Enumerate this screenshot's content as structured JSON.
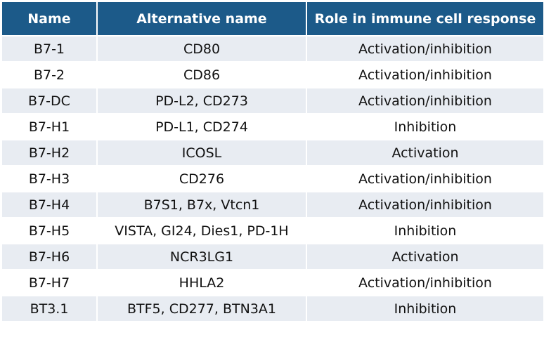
{
  "table": {
    "header": [
      "Name",
      "Alternative name",
      "Role in immune cell response"
    ],
    "rows": [
      [
        "B7-1",
        "CD80",
        "Activation/inhibition"
      ],
      [
        "B7-2",
        "CD86",
        "Activation/inhibition"
      ],
      [
        "B7-DC",
        "PD-L2, CD273",
        "Activation/inhibition"
      ],
      [
        "B7-H1",
        "PD-L1, CD274",
        "Inhibition"
      ],
      [
        "B7-H2",
        "ICOSL",
        "Activation"
      ],
      [
        "B7-H3",
        "CD276",
        "Activation/inhibition"
      ],
      [
        "B7-H4",
        "B7S1, B7x, Vtcn1",
        "Activation/inhibition"
      ],
      [
        "B7-H5",
        "VISTA, GI24, Dies1, PD-1H",
        "Inhibition"
      ],
      [
        "B7-H6",
        "NCR3LG1",
        "Activation"
      ],
      [
        "B7-H7",
        "HHLA2",
        "Activation/inhibition"
      ],
      [
        "BT3.1",
        "BTF5, CD277, BTN3A1",
        "Inhibition"
      ]
    ]
  }
}
